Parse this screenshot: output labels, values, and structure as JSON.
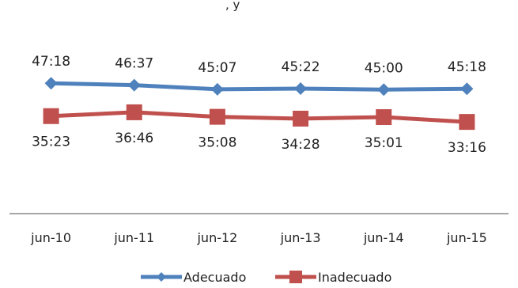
{
  "chart_data": {
    "type": "line",
    "top_fragment": ", y",
    "categories": [
      "jun-10",
      "jun-11",
      "jun-12",
      "jun-13",
      "jun-14",
      "jun-15"
    ],
    "series": [
      {
        "name": "Adecuado",
        "color": "#4F81BD",
        "marker": "diamond",
        "values": [
          47.3,
          46.617,
          45.117,
          45.367,
          45.0,
          45.3
        ],
        "labels": [
          "47:18",
          "46:37",
          "45:07",
          "45:22",
          "45:00",
          "45:18"
        ]
      },
      {
        "name": "Inadecuado",
        "color": "#C0504D",
        "marker": "square",
        "values": [
          35.383,
          36.767,
          35.133,
          34.467,
          35.017,
          33.267
        ],
        "labels": [
          "35:23",
          "36:46",
          "35:08",
          "34:28",
          "35:01",
          "33:16"
        ]
      }
    ],
    "ylim": [
      0,
      60
    ],
    "grid": false,
    "legend_position": "bottom"
  }
}
